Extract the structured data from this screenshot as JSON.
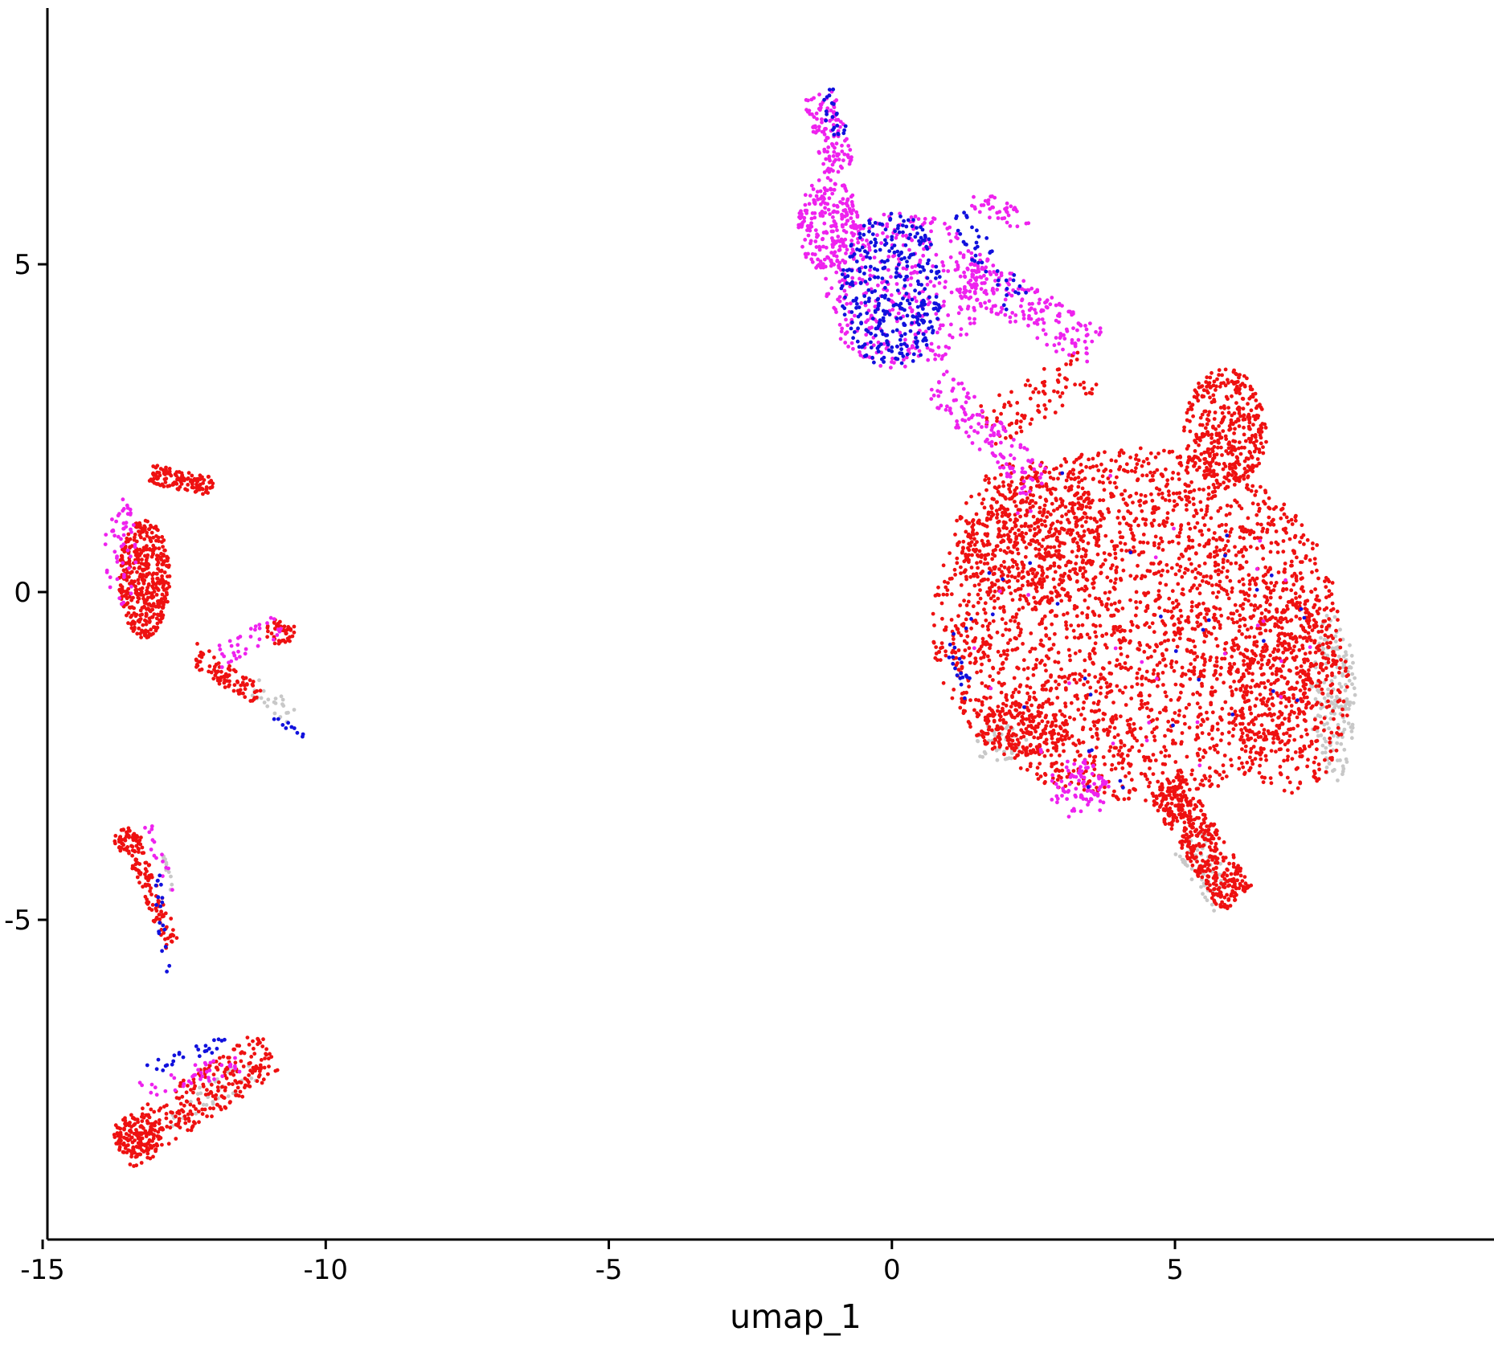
{
  "chart_data": {
    "type": "scatter",
    "title": "",
    "xlabel": "umap_1",
    "ylabel": "",
    "xlim": [
      -16.2,
      9.3
    ],
    "ylim": [
      -9.8,
      8.9
    ],
    "xticks": [
      -15,
      -10,
      -5,
      0,
      5
    ],
    "xtick_labels": [
      "-15",
      "-10",
      "-5",
      "0",
      "5"
    ],
    "yticks": [
      -5,
      0,
      5
    ],
    "ytick_labels": [
      "-5",
      "0",
      "5"
    ],
    "grid": false,
    "legend": "none",
    "colors": {
      "red": "#ee1111",
      "magenta": "#ee22ee",
      "blue": "#1111dd",
      "grey": "#c8c8c8",
      "axis": "#000000",
      "background": "#ffffff"
    },
    "clusters": [
      {
        "id": "main-body",
        "color": "red",
        "count": 2600,
        "shape": "ellipse",
        "cx": 4.3,
        "cy": -0.5,
        "rx": 3.6,
        "ry": 2.7
      },
      {
        "id": "main-lobe-right",
        "color": "red",
        "count": 420,
        "shape": "ellipse",
        "cx": 7.0,
        "cy": -1.5,
        "rx": 1.1,
        "ry": 1.6
      },
      {
        "id": "main-upper-left",
        "color": "red",
        "count": 380,
        "shape": "ellipse",
        "cx": 2.4,
        "cy": 0.9,
        "rx": 1.3,
        "ry": 1.1
      },
      {
        "id": "main-top-right",
        "color": "red",
        "count": 380,
        "shape": "ellipse",
        "cx": 5.9,
        "cy": 2.5,
        "rx": 0.75,
        "ry": 0.9
      },
      {
        "id": "main-tail",
        "color": "red",
        "count": 420,
        "shape": "segment",
        "p1": [
          4.8,
          -2.9
        ],
        "p2": [
          6.1,
          -4.7
        ],
        "width": 0.7
      },
      {
        "id": "main-bottom-left",
        "color": "red",
        "count": 160,
        "shape": "ellipse",
        "cx": 2.3,
        "cy": -2.1,
        "rx": 0.8,
        "ry": 0.4
      },
      {
        "id": "main-fringe-grey",
        "color": "grey",
        "count": 170,
        "shape": "ellipse",
        "cx": 7.8,
        "cy": -1.6,
        "rx": 0.4,
        "ry": 1.3
      },
      {
        "id": "main-tail-grey",
        "color": "grey",
        "count": 60,
        "shape": "segment",
        "p1": [
          5.2,
          -3.8
        ],
        "p2": [
          5.9,
          -4.7
        ],
        "width": 0.6
      },
      {
        "id": "main-bottom-grey",
        "color": "grey",
        "count": 40,
        "shape": "ellipse",
        "cx": 1.9,
        "cy": -2.3,
        "rx": 0.5,
        "ry": 0.3
      },
      {
        "id": "main-magenta-bottom",
        "color": "magenta",
        "count": 90,
        "shape": "ellipse",
        "cx": 3.3,
        "cy": -3.0,
        "rx": 0.55,
        "ry": 0.45
      },
      {
        "id": "main-magenta-sparse",
        "color": "magenta",
        "count": 30,
        "shape": "ellipse",
        "cx": 4.3,
        "cy": -0.5,
        "rx": 3.2,
        "ry": 2.3
      },
      {
        "id": "main-blue-sparse",
        "color": "blue",
        "count": 35,
        "shape": "ellipse",
        "cx": 4.3,
        "cy": -0.5,
        "rx": 3.5,
        "ry": 2.6
      },
      {
        "id": "main-blue-left",
        "color": "blue",
        "count": 16,
        "shape": "segment",
        "p1": [
          1.0,
          -0.8
        ],
        "p2": [
          1.3,
          -1.4
        ],
        "width": 0.25
      },
      {
        "id": "upper-tip-magenta",
        "color": "magenta",
        "count": 120,
        "shape": "segment",
        "p1": [
          -1.3,
          7.6
        ],
        "p2": [
          -0.9,
          6.4
        ],
        "width": 0.55
      },
      {
        "id": "upper-tip-blue",
        "color": "blue",
        "count": 22,
        "shape": "segment",
        "p1": [
          -1.2,
          7.7
        ],
        "p2": [
          -0.9,
          6.9
        ],
        "width": 0.3
      },
      {
        "id": "upper-left-magenta",
        "color": "magenta",
        "count": 240,
        "shape": "ellipse",
        "cx": -1.1,
        "cy": 5.6,
        "rx": 0.55,
        "ry": 0.75
      },
      {
        "id": "upper-core-magenta",
        "color": "magenta",
        "count": 380,
        "shape": "ellipse",
        "cx": 0.2,
        "cy": 4.6,
        "rx": 1.4,
        "ry": 1.2
      },
      {
        "id": "upper-core-blue",
        "color": "blue",
        "count": 330,
        "shape": "ellipse",
        "cx": 0.0,
        "cy": 4.6,
        "rx": 0.9,
        "ry": 1.2
      },
      {
        "id": "upper-arm-magenta",
        "color": "magenta",
        "count": 200,
        "shape": "segment",
        "p1": [
          1.3,
          4.9
        ],
        "p2": [
          3.6,
          3.7
        ],
        "width": 0.7
      },
      {
        "id": "upper-arm-top-magenta",
        "color": "magenta",
        "count": 40,
        "shape": "segment",
        "p1": [
          1.4,
          6.0
        ],
        "p2": [
          2.4,
          5.6
        ],
        "width": 0.35
      },
      {
        "id": "upper-arm-blue",
        "color": "blue",
        "count": 40,
        "shape": "segment",
        "p1": [
          1.2,
          5.8
        ],
        "p2": [
          2.2,
          4.4
        ],
        "width": 0.5
      },
      {
        "id": "upper-stem-magenta",
        "color": "magenta",
        "count": 130,
        "shape": "segment",
        "p1": [
          0.8,
          3.2
        ],
        "p2": [
          2.6,
          1.6
        ],
        "width": 0.6
      },
      {
        "id": "upper-stem-red",
        "color": "red",
        "count": 90,
        "shape": "segment",
        "p1": [
          1.6,
          2.5
        ],
        "p2": [
          3.5,
          3.4
        ],
        "width": 0.7
      },
      {
        "id": "island-top-red",
        "color": "red",
        "count": 430,
        "shape": "ellipse",
        "cx": -13.2,
        "cy": 0.2,
        "rx": 0.45,
        "ry": 0.9
      },
      {
        "id": "island-top-arc",
        "color": "red",
        "count": 120,
        "shape": "segment",
        "p1": [
          -13.1,
          1.8
        ],
        "p2": [
          -12.0,
          1.6
        ],
        "width": 0.3
      },
      {
        "id": "island-top-magenta",
        "color": "magenta",
        "count": 55,
        "shape": "ellipse",
        "cx": -13.6,
        "cy": 0.7,
        "rx": 0.3,
        "ry": 0.9
      },
      {
        "id": "island-branch-red",
        "color": "red",
        "count": 90,
        "shape": "segment",
        "p1": [
          -12.4,
          -0.9
        ],
        "p2": [
          -11.2,
          -1.6
        ],
        "width": 0.35
      },
      {
        "id": "island-branch-right",
        "color": "red",
        "count": 45,
        "shape": "ellipse",
        "cx": -10.8,
        "cy": -0.6,
        "rx": 0.3,
        "ry": 0.2
      },
      {
        "id": "island-branch-magenta",
        "color": "magenta",
        "count": 35,
        "shape": "segment",
        "p1": [
          -11.9,
          -1.0
        ],
        "p2": [
          -10.8,
          -0.5
        ],
        "width": 0.35
      },
      {
        "id": "island-branch-tail",
        "color": "blue",
        "count": 10,
        "shape": "segment",
        "p1": [
          -10.9,
          -1.9
        ],
        "p2": [
          -10.4,
          -2.2
        ],
        "width": 0.1
      },
      {
        "id": "island-branch-grey",
        "color": "grey",
        "count": 25,
        "shape": "segment",
        "p1": [
          -11.3,
          -1.4
        ],
        "p2": [
          -10.6,
          -1.9
        ],
        "width": 0.3
      },
      {
        "id": "island-mid-red",
        "color": "red",
        "count": 110,
        "shape": "segment",
        "p1": [
          -13.5,
          -3.7
        ],
        "p2": [
          -12.7,
          -5.4
        ],
        "width": 0.3
      },
      {
        "id": "island-mid-blob",
        "color": "red",
        "count": 50,
        "shape": "ellipse",
        "cx": -13.5,
        "cy": -3.8,
        "rx": 0.25,
        "ry": 0.2
      },
      {
        "id": "island-mid-blue",
        "color": "blue",
        "count": 20,
        "shape": "segment",
        "p1": [
          -13.0,
          -4.2
        ],
        "p2": [
          -12.8,
          -5.8
        ],
        "width": 0.15
      },
      {
        "id": "island-mid-magenta",
        "color": "magenta",
        "count": 15,
        "shape": "segment",
        "p1": [
          -13.2,
          -3.4
        ],
        "p2": [
          -12.7,
          -4.6
        ],
        "width": 0.2
      },
      {
        "id": "island-mid-grey",
        "color": "grey",
        "count": 10,
        "shape": "segment",
        "p1": [
          -12.9,
          -4.0
        ],
        "p2": [
          -12.7,
          -4.6
        ],
        "width": 0.1
      },
      {
        "id": "island-bottom-red",
        "color": "red",
        "count": 300,
        "shape": "segment",
        "p1": [
          -13.6,
          -8.5
        ],
        "p2": [
          -11.0,
          -7.0
        ],
        "width": 0.75
      },
      {
        "id": "island-bottom-core",
        "color": "red",
        "count": 120,
        "shape": "ellipse",
        "cx": -13.3,
        "cy": -8.3,
        "rx": 0.45,
        "ry": 0.35
      },
      {
        "id": "island-bottom-magenta",
        "color": "magenta",
        "count": 40,
        "shape": "segment",
        "p1": [
          -13.3,
          -7.6
        ],
        "p2": [
          -11.2,
          -7.1
        ],
        "width": 0.3
      },
      {
        "id": "island-bottom-blue",
        "color": "blue",
        "count": 25,
        "shape": "segment",
        "p1": [
          -13.2,
          -7.3
        ],
        "p2": [
          -11.6,
          -6.8
        ],
        "width": 0.2
      },
      {
        "id": "island-bottom-grey",
        "color": "grey",
        "count": 35,
        "shape": "segment",
        "p1": [
          -12.9,
          -8.0
        ],
        "p2": [
          -11.3,
          -7.3
        ],
        "width": 0.45
      }
    ]
  }
}
